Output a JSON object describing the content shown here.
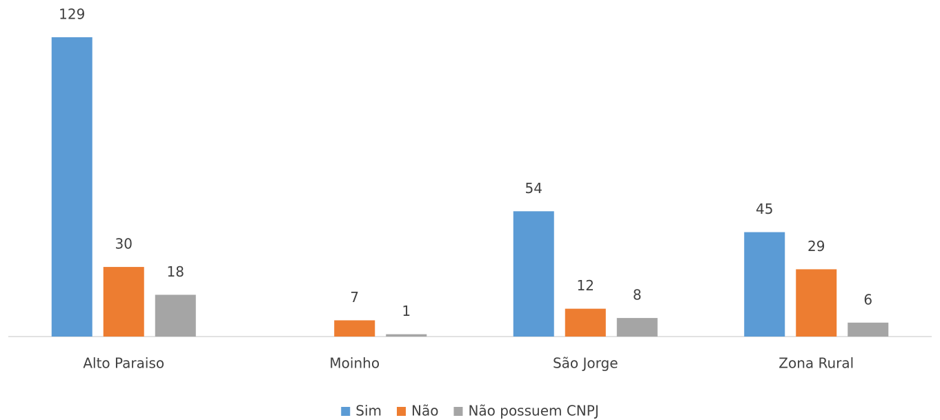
{
  "chart_data": {
    "type": "bar",
    "categories": [
      "Alto Paraiso",
      "Moinho",
      "São Jorge",
      "Zona Rural"
    ],
    "series": [
      {
        "name": "Sim",
        "color": "#5b9bd5",
        "values": [
          129,
          null,
          54,
          45
        ]
      },
      {
        "name": "Não",
        "color": "#ed7d31",
        "values": [
          30,
          7,
          12,
          29
        ]
      },
      {
        "name": "Não possuem CNPJ",
        "color": "#a5a5a5",
        "values": [
          18,
          1,
          8,
          6
        ]
      }
    ]
  }
}
